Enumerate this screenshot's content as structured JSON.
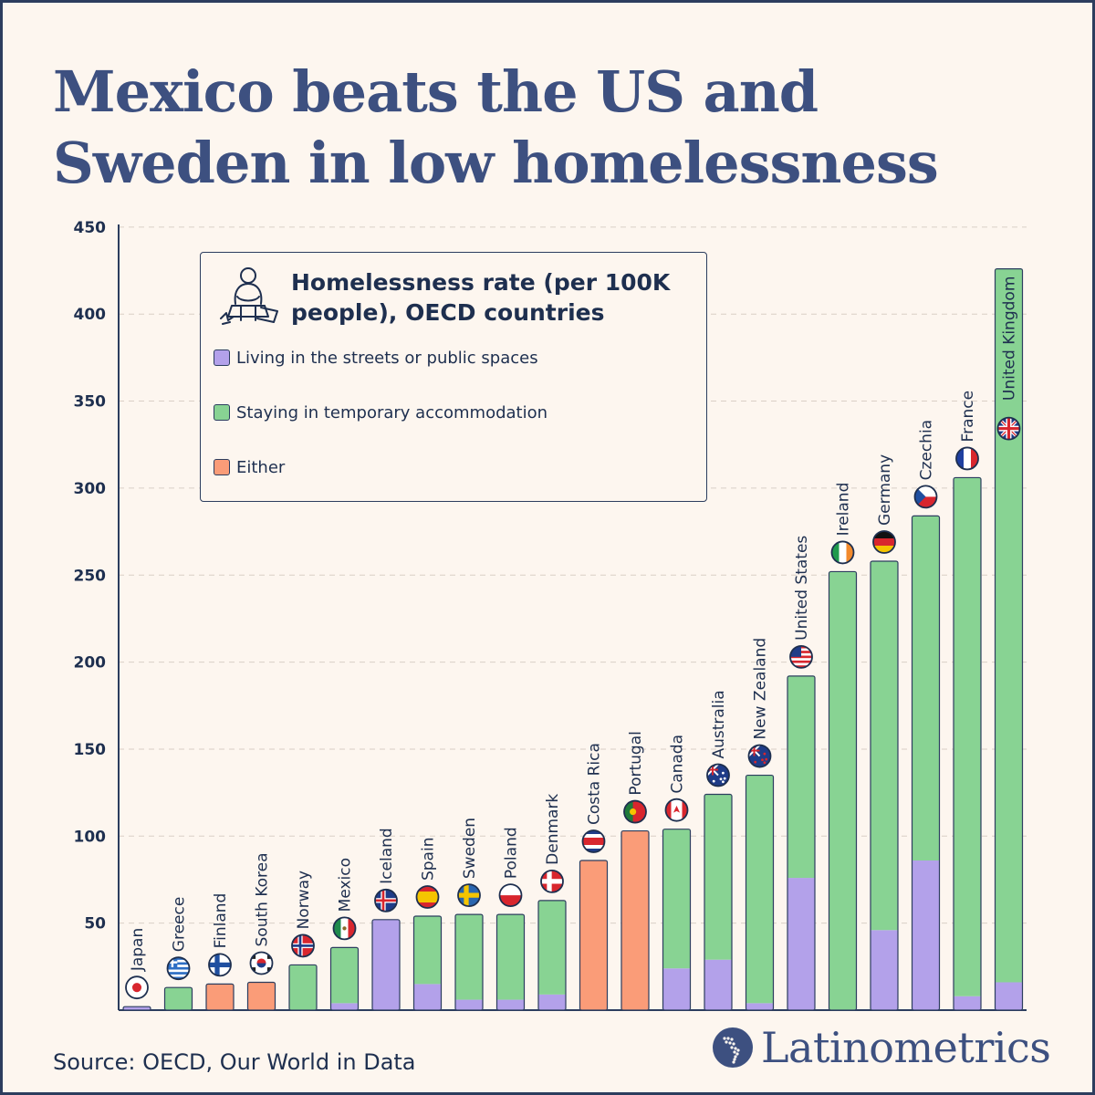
{
  "title": "Mexico beats the US and Sweden in low homelessness",
  "legend": {
    "title": "Homelessness rate (per 100K people), OECD countries",
    "items": [
      {
        "label": "Living in the streets or public spaces",
        "color": "#b3a1ea"
      },
      {
        "label": "Staying in temporary accommodation",
        "color": "#88d393"
      },
      {
        "label": "Either",
        "color": "#fa9c78"
      }
    ]
  },
  "source": "Source: OECD, Our World in Data",
  "brand": "Latinometrics",
  "colors": {
    "streets": "#b3a1ea",
    "temporary": "#88d393",
    "either": "#fa9c78",
    "title": "#3d5080",
    "text": "#1e2f4f"
  },
  "chart_data": {
    "type": "bar",
    "stacked": true,
    "ylim": [
      0,
      450
    ],
    "y_ticks": [
      50,
      100,
      150,
      200,
      250,
      300,
      350,
      400,
      450
    ],
    "grid": true,
    "categories": [
      "Japan",
      "Greece",
      "Finland",
      "South Korea",
      "Norway",
      "Mexico",
      "Iceland",
      "Spain",
      "Sweden",
      "Poland",
      "Denmark",
      "Costa Rica",
      "Portugal",
      "Canada",
      "Australia",
      "New Zealand",
      "United States",
      "Ireland",
      "Germany",
      "Czechia",
      "France",
      "United Kingdom"
    ],
    "series": [
      {
        "name": "Living in the streets or public spaces",
        "values": [
          2,
          0,
          0,
          0,
          0,
          4,
          52,
          15,
          6,
          6,
          9,
          0,
          0,
          24,
          29,
          4,
          76,
          0,
          46,
          86,
          8,
          16
        ]
      },
      {
        "name": "Staying in temporary accommodation",
        "values": [
          0,
          13,
          0,
          0,
          26,
          32,
          0,
          39,
          49,
          49,
          54,
          0,
          0,
          80,
          95,
          131,
          116,
          252,
          212,
          198,
          298,
          410
        ]
      },
      {
        "name": "Either",
        "values": [
          0,
          0,
          15,
          16,
          0,
          0,
          0,
          0,
          0,
          0,
          0,
          86,
          103,
          0,
          0,
          0,
          0,
          0,
          0,
          0,
          0,
          0
        ]
      }
    ],
    "flag_icons": [
      "japan-flag",
      "greece-flag",
      "finland-flag",
      "south-korea-flag",
      "norway-flag",
      "mexico-flag",
      "iceland-flag",
      "spain-flag",
      "sweden-flag",
      "poland-flag",
      "denmark-flag",
      "costa-rica-flag",
      "portugal-flag",
      "canada-flag",
      "australia-flag",
      "new-zealand-flag",
      "united-states-flag",
      "ireland-flag",
      "germany-flag",
      "czechia-flag",
      "france-flag",
      "united-kingdom-flag"
    ]
  }
}
